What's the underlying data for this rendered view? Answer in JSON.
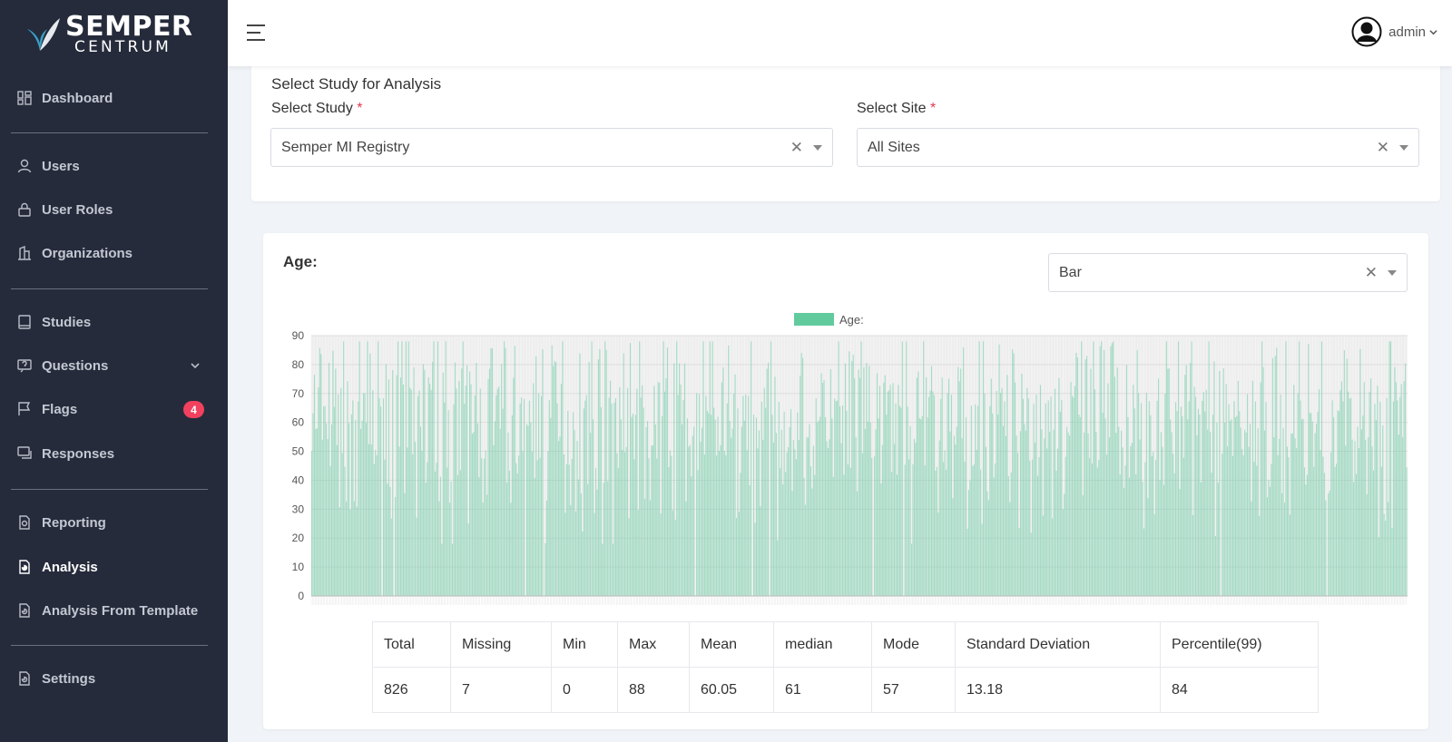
{
  "brand": {
    "line1": "SEMPER",
    "line2": "CENTRUM"
  },
  "sidebar": {
    "items": [
      {
        "label": "Dashboard",
        "icon": "dashboard-icon"
      },
      {
        "label": "Users",
        "icon": "user-icon"
      },
      {
        "label": "User Roles",
        "icon": "lock-icon"
      },
      {
        "label": "Organizations",
        "icon": "building-icon"
      },
      {
        "label": "Studies",
        "icon": "book-icon"
      },
      {
        "label": "Questions",
        "icon": "question-icon"
      },
      {
        "label": "Flags",
        "icon": "flag-icon",
        "badge": "4"
      },
      {
        "label": "Responses",
        "icon": "chat-icon"
      },
      {
        "label": "Reporting",
        "icon": "report-icon"
      },
      {
        "label": "Analysis",
        "icon": "analysis-icon",
        "active": true
      },
      {
        "label": "Analysis From Template",
        "icon": "template-icon"
      },
      {
        "label": "Settings",
        "icon": "settings-icon"
      }
    ]
  },
  "header": {
    "user": "admin"
  },
  "study_panel": {
    "title": "Select Study for Analysis",
    "study_label": "Select Study",
    "study_value": "Semper MI Registry",
    "site_label": "Select Site",
    "site_value": "All Sites",
    "required_mark": "*"
  },
  "analysis": {
    "title": "Age:",
    "chart_type_value": "Bar"
  },
  "chart_data": {
    "type": "bar",
    "series": [
      {
        "name": "Age:"
      }
    ],
    "ylim": [
      0,
      90
    ],
    "yticks": [
      "0",
      "10",
      "20",
      "30",
      "40",
      "50",
      "60",
      "70",
      "80",
      "90"
    ],
    "bar_count": 826,
    "value_range": [
      0,
      88
    ],
    "mean": 60.05,
    "grid": true,
    "legend": "top-center",
    "bar_color": "#62cb9e"
  },
  "stats": {
    "headers": [
      "Total",
      "Missing",
      "Min",
      "Max",
      "Mean",
      "median",
      "Mode",
      "Standard Deviation",
      "Percentile(99)"
    ],
    "values": [
      "826",
      "7",
      "0",
      "88",
      "60.05",
      "61",
      "57",
      "13.18",
      "84"
    ]
  }
}
